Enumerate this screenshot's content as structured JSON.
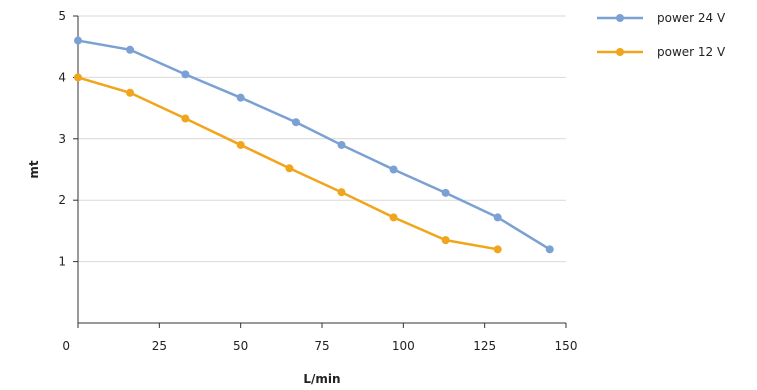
{
  "chart_data": {
    "type": "line",
    "title": "",
    "xlabel": "L/min",
    "ylabel": "mt",
    "xlim": [
      0,
      150
    ],
    "ylim": [
      0,
      5
    ],
    "xticks": [
      0,
      25,
      50,
      75,
      100,
      125,
      150
    ],
    "yticks": [
      1,
      2,
      3,
      4,
      5
    ],
    "grid": {
      "horizontal": true,
      "vertical": false
    },
    "legend": "top-right",
    "series": [
      {
        "name": "power 24 V",
        "color": "#7aa0d4",
        "x": [
          0,
          16,
          33,
          50,
          67,
          81,
          97,
          113,
          129,
          145
        ],
        "y": [
          4.6,
          4.45,
          4.05,
          3.67,
          3.27,
          2.9,
          2.5,
          2.12,
          1.72,
          1.2
        ]
      },
      {
        "name": "power 12 V",
        "color": "#f1a51b",
        "x": [
          0,
          16,
          33,
          50,
          65,
          81,
          97,
          113,
          129
        ],
        "y": [
          4.0,
          3.75,
          3.33,
          2.9,
          2.52,
          2.13,
          1.72,
          1.35,
          1.2
        ]
      }
    ]
  }
}
